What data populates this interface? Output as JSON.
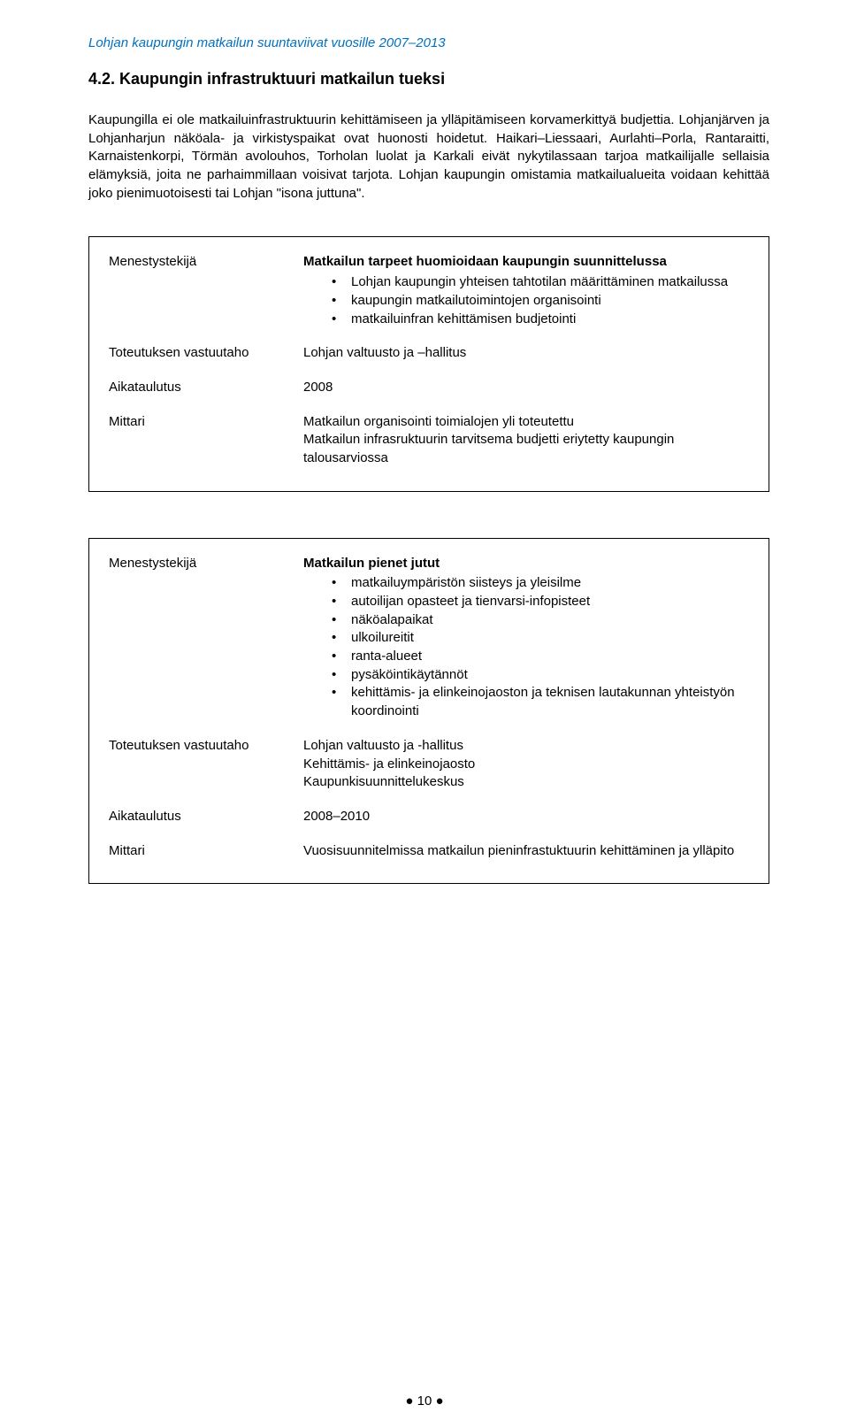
{
  "colors": {
    "header_color": "#0070c0",
    "text_color": "#000000",
    "bg_color": "#ffffff",
    "border_color": "#000000"
  },
  "typography": {
    "body_fontsize_pt": 11,
    "heading_fontsize_pt": 13,
    "font_family": "Arial"
  },
  "header": {
    "running_title": "Lohjan kaupungin matkailun suuntaviivat vuosille 2007–2013"
  },
  "section": {
    "number_title": "4.2.   Kaupungin infrastruktuuri matkailun tueksi",
    "paragraph": "Kaupungilla ei ole matkailuinfrastruktuurin kehittämiseen ja ylläpitämiseen korvamerkittyä budjettia. Lohjanjärven ja Lohjanharjun näköala- ja virkistyspaikat ovat huonosti hoidetut. Haikari–Liessaari, Aurlahti–Porla, Rantaraitti, Karnaistenkorpi, Törmän avolouhos, Torholan luolat ja Karkali eivät nykytilassaan tarjoa matkailijalle sellaisia elämyksiä, joita ne parhaimmillaan voisivat tarjota. Lohjan kaupungin omistamia matkailualueita voidaan kehittää joko pienimuotoisesti tai Lohjan \"isona juttuna\"."
  },
  "box1": {
    "rows": {
      "menestystekija": {
        "label": "Menestystekijä",
        "lead": "Matkailun tarpeet huomioidaan kaupungin suunnittelussa",
        "bullets": [
          "Lohjan kaupungin yhteisen tahtotilan määrittäminen matkailussa",
          "kaupungin matkailutoimintojen organisointi",
          "matkailuinfran kehittämisen budjetointi"
        ]
      },
      "toteutus": {
        "label": "Toteutuksen vastuutaho",
        "value": "Lohjan valtuusto ja –hallitus"
      },
      "aikataulutus": {
        "label": "Aikataulutus",
        "value": "2008"
      },
      "mittari": {
        "label": "Mittari",
        "value": "Matkailun organisointi toimialojen yli toteutettu\nMatkailun infrasruktuurin tarvitsema budjetti eriytetty kaupungin talousarviossa"
      }
    }
  },
  "box2": {
    "rows": {
      "menestystekija": {
        "label": "Menestystekijä",
        "lead": "Matkailun pienet jutut",
        "bullets": [
          "matkailuympäristön siisteys ja yleisilme",
          "autoilijan opasteet ja tienvarsi-infopisteet",
          "näköalapaikat",
          "ulkoilureitit",
          "ranta-alueet",
          "pysäköintikäytännöt",
          "kehittämis- ja elinkeinojaoston ja teknisen lautakunnan yhteistyön koordinointi"
        ]
      },
      "toteutus": {
        "label": "Toteutuksen vastuutaho",
        "value": "Lohjan valtuusto ja -hallitus\nKehittämis- ja elinkeinojaosto\nKaupunkisuunnittelukeskus"
      },
      "aikataulutus": {
        "label": "Aikataulutus",
        "value": "2008–2010"
      },
      "mittari": {
        "label": "Mittari",
        "value": "Vuosisuunnitelmissa matkailun pieninfrastuktuurin kehittäminen ja ylläpito"
      }
    }
  },
  "footer": {
    "page_number": "10",
    "bullet": "●"
  }
}
